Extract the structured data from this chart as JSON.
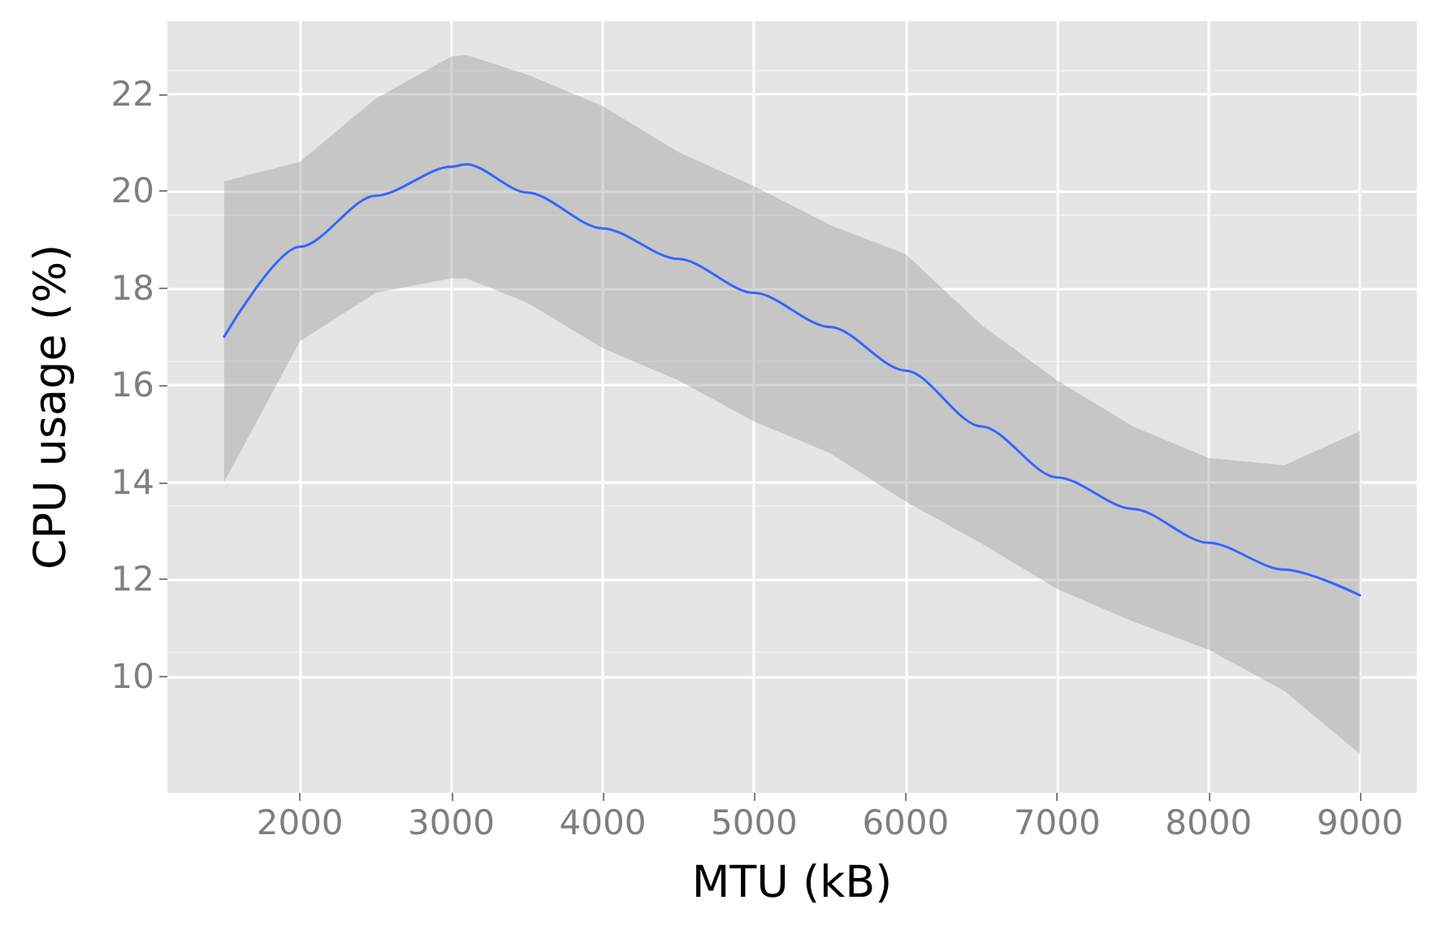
{
  "chart_data": {
    "type": "line",
    "xlabel": "MTU (kB)",
    "ylabel": "CPU usage (%)",
    "x": [
      1500,
      2000,
      2500,
      3000,
      3100,
      3500,
      4000,
      4500,
      5000,
      5500,
      6000,
      6500,
      7000,
      7500,
      8000,
      8500,
      9000
    ],
    "series": [
      {
        "color": "#3366ff",
        "values": [
          17.0,
          18.85,
          19.9,
          20.5,
          20.55,
          19.97,
          19.23,
          18.6,
          17.9,
          17.2,
          16.3,
          15.15,
          14.1,
          13.45,
          12.75,
          12.2,
          11.67
        ],
        "upper": [
          20.2,
          20.6,
          21.9,
          22.77,
          22.8,
          22.4,
          21.75,
          20.8,
          20.1,
          19.3,
          18.7,
          17.24,
          16.1,
          15.15,
          14.5,
          14.35,
          15.05
        ],
        "lower": [
          14.0,
          16.9,
          17.9,
          18.2,
          18.2,
          17.7,
          16.76,
          16.1,
          15.25,
          14.6,
          13.6,
          12.74,
          11.8,
          11.13,
          10.55,
          9.7,
          8.4
        ]
      }
    ],
    "xlim": [
      1125,
      9375
    ],
    "ylim": [
      7.6,
      23.5
    ],
    "xticks": [
      2000,
      3000,
      4000,
      5000,
      6000,
      7000,
      8000,
      9000
    ],
    "yticks": [
      10,
      12,
      14,
      16,
      18,
      20,
      22
    ],
    "grid": true,
    "marker": "none",
    "line_style": "solid"
  }
}
